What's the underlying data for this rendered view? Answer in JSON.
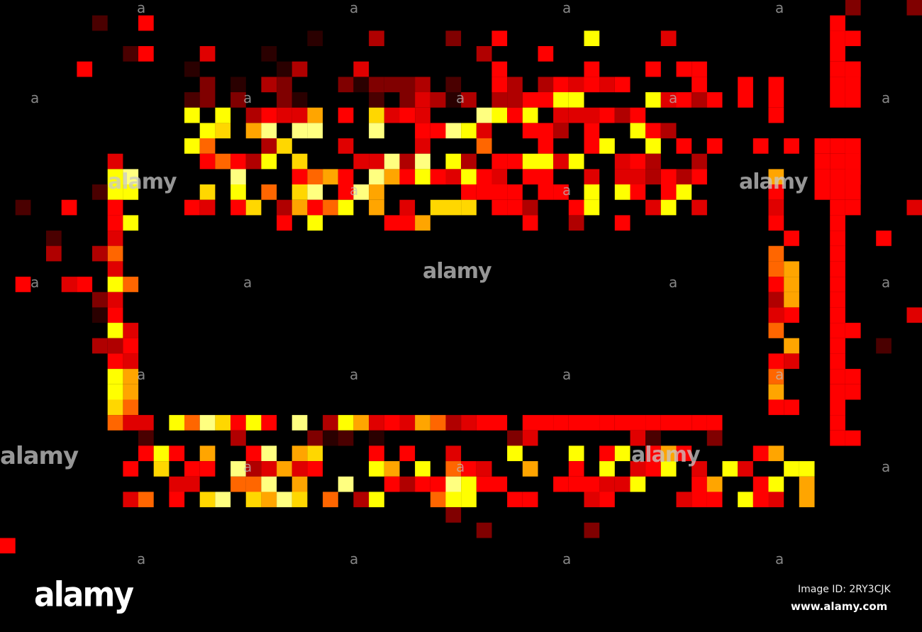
{
  "watermark": {
    "brand": "alamy",
    "small_mark": "a"
  },
  "footer": {
    "logo": "alamy",
    "image_id": "Image ID: 2RY3CJK",
    "website": "www.alamy.com"
  },
  "palette": [
    "#ff0000",
    "#e00000",
    "#b00000",
    "#800000",
    "#4a0000",
    "#2a0000",
    "#ff6600",
    "#ffa500",
    "#ffd700",
    "#ffff00",
    "#ffff80"
  ]
}
